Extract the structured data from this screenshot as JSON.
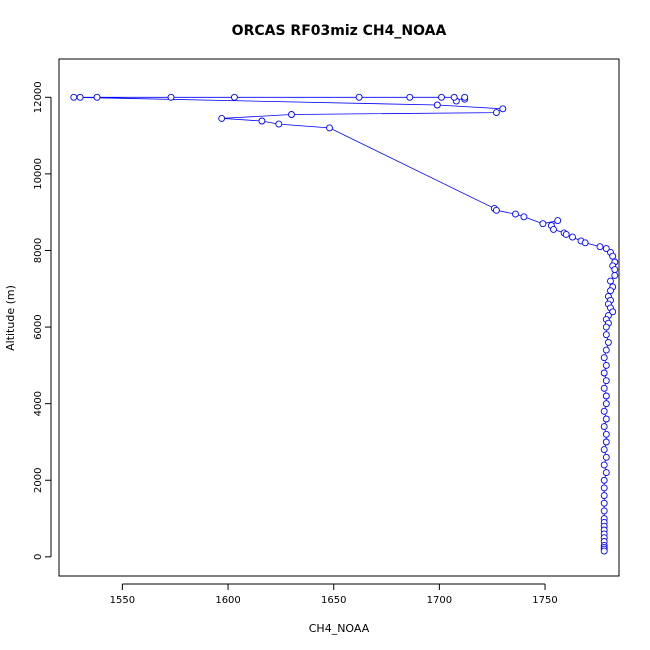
{
  "chart_data": {
    "type": "line",
    "title": "ORCAS RF03miz CH4_NOAA",
    "xlabel": "CH4_NOAA",
    "ylabel": "Altitude (m)",
    "xlim": [
      1520,
      1785
    ],
    "ylim": [
      -500,
      13000
    ],
    "xticks": [
      1550,
      1600,
      1650,
      1700,
      1750
    ],
    "yticks": [
      0,
      2000,
      4000,
      6000,
      8000,
      10000,
      12000
    ],
    "grid": false,
    "marker": "open-circle",
    "line_color": "#0000ff",
    "series": [
      {
        "x": [
          1712,
          1712,
          1708,
          1707,
          1701,
          1686,
          1662,
          1603,
          1573,
          1538,
          1530,
          1527,
          1699,
          1730,
          1727,
          1630,
          1597,
          1616,
          1624,
          1648,
          1726,
          1727,
          1736,
          1740,
          1749,
          1756,
          1753,
          1754,
          1759,
          1760,
          1763,
          1767,
          1769,
          1776,
          1779,
          1781,
          1782,
          1783,
          1782,
          1783,
          1783,
          1781,
          1782,
          1781,
          1780,
          1781,
          1780,
          1781,
          1782,
          1780,
          1779,
          1780,
          1779,
          1779,
          1780,
          1779,
          1778,
          1779,
          1778,
          1779,
          1778,
          1779,
          1779,
          1778,
          1779,
          1778,
          1779,
          1779,
          1778,
          1779,
          1778,
          1779,
          1778,
          1778,
          1778,
          1778,
          1778,
          1778,
          1778,
          1778,
          1778,
          1778,
          1778,
          1778,
          1778,
          1778,
          1778,
          1778
        ],
        "y": [
          11950,
          12000,
          11900,
          12000,
          12000,
          12000,
          12000,
          12000,
          12000,
          12000,
          12000,
          12000,
          11800,
          11700,
          11600,
          11550,
          11450,
          11380,
          11300,
          11200,
          9100,
          9050,
          8950,
          8880,
          8700,
          8780,
          8650,
          8550,
          8460,
          8420,
          8350,
          8250,
          8200,
          8100,
          8050,
          7950,
          7850,
          7700,
          7600,
          7500,
          7350,
          7200,
          7050,
          6950,
          6800,
          6700,
          6600,
          6500,
          6400,
          6300,
          6200,
          6100,
          6000,
          5800,
          5600,
          5400,
          5200,
          5000,
          4800,
          4600,
          4400,
          4200,
          4000,
          3800,
          3600,
          3400,
          3200,
          3000,
          2800,
          2600,
          2400,
          2200,
          2000,
          1800,
          1600,
          1400,
          1200,
          1000,
          900,
          800,
          700,
          600,
          500,
          400,
          300,
          250,
          200,
          150
        ]
      }
    ]
  }
}
